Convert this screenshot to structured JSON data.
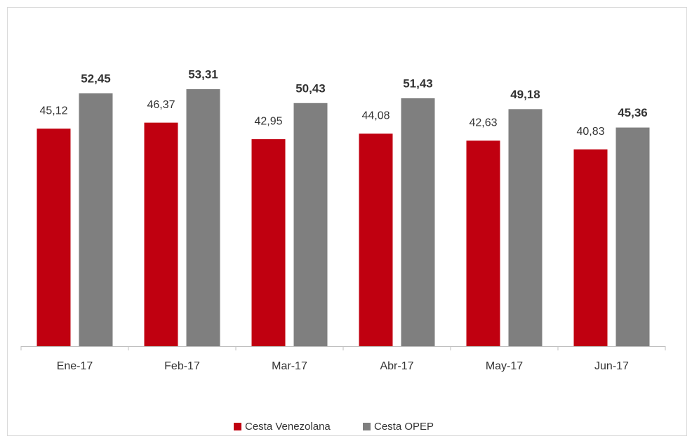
{
  "chart_data": {
    "type": "bar",
    "categories": [
      "Ene-17",
      "Feb-17",
      "Mar-17",
      "Abr-17",
      "May-17",
      "Jun-17"
    ],
    "series": [
      {
        "name": "Cesta Venezolana",
        "color": "#c00010",
        "values": [
          45.12,
          46.37,
          42.95,
          44.08,
          42.63,
          40.83
        ],
        "value_labels": [
          "45,12",
          "46,37",
          "42,95",
          "44,08",
          "42,63",
          "40,83"
        ]
      },
      {
        "name": "Cesta OPEP",
        "color": "#7f7f7f",
        "values": [
          52.45,
          53.31,
          50.43,
          51.43,
          49.18,
          45.36
        ],
        "value_labels": [
          "52,45",
          "53,31",
          "50,43",
          "51,43",
          "49,18",
          "45,36"
        ]
      }
    ]
  }
}
